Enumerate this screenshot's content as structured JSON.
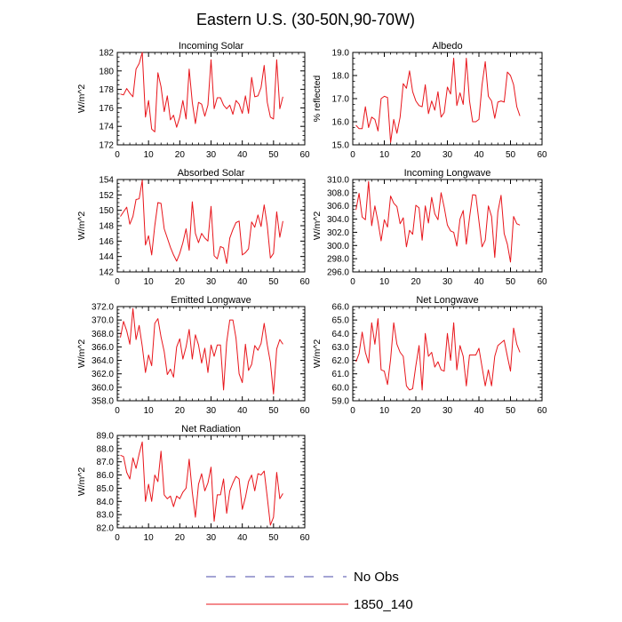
{
  "title": "Eastern U.S. (30-50N,90-70W)",
  "legend": [
    {
      "label": "No Obs",
      "color": "#4a4aa8",
      "dash": true
    },
    {
      "label": "1850_140",
      "color": "#e8151b",
      "dash": false
    }
  ],
  "chart_data": [
    {
      "type": "line",
      "title": "Incoming Solar",
      "ylabel": "W/m^2",
      "xlim": [
        0,
        60
      ],
      "ylim": [
        172,
        182
      ],
      "xticks": [
        0,
        10,
        20,
        30,
        40,
        50,
        60
      ],
      "yticks": [
        172,
        174,
        176,
        178,
        180,
        182
      ],
      "ytick_labels": [
        "172",
        "174",
        "176",
        "178",
        "180",
        "182"
      ],
      "series": [
        {
          "name": "1850_140",
          "color": "#e8151b",
          "x": [
            1,
            2,
            3,
            4,
            5,
            6,
            7,
            8,
            9,
            10,
            11,
            12,
            13,
            14,
            15,
            16,
            17,
            18,
            19,
            20,
            21,
            22,
            23,
            24,
            25,
            26,
            27,
            28,
            29,
            30,
            31,
            32,
            33,
            34,
            35,
            36,
            37,
            38,
            39,
            40,
            41,
            42,
            43,
            44,
            45,
            46,
            47,
            48,
            49,
            50,
            51,
            52,
            53
          ],
          "values": [
            177.5,
            177.4,
            178.1,
            177.6,
            177.2,
            180.2,
            180.8,
            182.0,
            175.0,
            176.8,
            173.7,
            173.4,
            179.8,
            178.3,
            175.6,
            177.3,
            174.7,
            175.2,
            173.9,
            175.0,
            176.8,
            174.8,
            180.2,
            176.6,
            174.3,
            176.6,
            176.4,
            175.1,
            176.3,
            181.2,
            175.9,
            177.1,
            177.1,
            176.3,
            175.9,
            176.3,
            175.3,
            176.8,
            176.4,
            175.4,
            177.3,
            175.4,
            179.3,
            177.2,
            177.3,
            178.2,
            180.6,
            176.6,
            175.0,
            174.8,
            181.2,
            175.9,
            177.2
          ]
        }
      ]
    },
    {
      "type": "line",
      "title": "Albedo",
      "ylabel": "% reflected",
      "xlim": [
        0,
        60
      ],
      "ylim": [
        15,
        19
      ],
      "xticks": [
        0,
        10,
        20,
        30,
        40,
        50,
        60
      ],
      "yticks": [
        15,
        16,
        17,
        18,
        19
      ],
      "ytick_labels": [
        "15.0",
        "16.0",
        "17.0",
        "18.0",
        "19.0"
      ],
      "series": [
        {
          "name": "1850_140",
          "color": "#e8151b",
          "x": [
            1,
            2,
            3,
            4,
            5,
            6,
            7,
            8,
            9,
            10,
            11,
            12,
            13,
            14,
            15,
            16,
            17,
            18,
            19,
            20,
            21,
            22,
            23,
            24,
            25,
            26,
            27,
            28,
            29,
            30,
            31,
            32,
            33,
            34,
            35,
            36,
            37,
            38,
            39,
            40,
            41,
            42,
            43,
            44,
            45,
            46,
            47,
            48,
            49,
            50,
            51,
            52,
            53
          ],
          "values": [
            15.85,
            15.7,
            15.7,
            16.65,
            15.75,
            16.2,
            16.1,
            15.6,
            17.0,
            17.1,
            17.05,
            15.1,
            16.1,
            15.5,
            16.2,
            17.65,
            17.45,
            18.2,
            17.3,
            16.9,
            16.7,
            16.65,
            17.6,
            16.35,
            16.9,
            16.5,
            17.3,
            16.2,
            16.4,
            17.5,
            17.2,
            18.75,
            16.7,
            17.25,
            16.75,
            18.75,
            16.9,
            16.0,
            16.0,
            16.1,
            17.6,
            18.6,
            17.1,
            16.9,
            16.15,
            16.85,
            16.9,
            16.85,
            18.15,
            18.0,
            17.6,
            16.65,
            16.25
          ]
        }
      ]
    },
    {
      "type": "line",
      "title": "Absorbed Solar",
      "ylabel": "W/m^2",
      "xlim": [
        0,
        60
      ],
      "ylim": [
        142,
        154
      ],
      "xticks": [
        0,
        10,
        20,
        30,
        40,
        50,
        60
      ],
      "yticks": [
        142,
        144,
        146,
        148,
        150,
        152,
        154
      ],
      "ytick_labels": [
        "142",
        "144",
        "146",
        "148",
        "150",
        "152",
        "154"
      ],
      "series": [
        {
          "name": "1850_140",
          "color": "#e8151b",
          "x": [
            1,
            2,
            3,
            4,
            5,
            6,
            7,
            8,
            9,
            10,
            11,
            12,
            13,
            14,
            15,
            16,
            17,
            18,
            19,
            20,
            21,
            22,
            23,
            24,
            25,
            26,
            27,
            28,
            29,
            30,
            31,
            32,
            33,
            34,
            35,
            36,
            37,
            38,
            39,
            40,
            41,
            42,
            43,
            44,
            45,
            46,
            47,
            48,
            49,
            50,
            51,
            52,
            53
          ],
          "values": [
            149.2,
            149.8,
            150.4,
            148.2,
            149.2,
            151.4,
            151.5,
            153.9,
            145.5,
            146.7,
            144.2,
            148.0,
            151.0,
            150.9,
            147.6,
            146.4,
            145.2,
            144.2,
            143.4,
            144.4,
            145.8,
            147.6,
            144.8,
            151.1,
            147.0,
            145.8,
            147.0,
            146.4,
            146.0,
            150.5,
            144.1,
            143.7,
            145.3,
            145.1,
            143.1,
            146.4,
            147.5,
            148.4,
            148.6,
            144.2,
            144.5,
            145.0,
            148.5,
            147.8,
            149.4,
            147.9,
            150.7,
            148.0,
            143.8,
            144.4,
            149.8,
            146.5,
            148.6
          ]
        }
      ]
    },
    {
      "type": "line",
      "title": "Incoming Longwave",
      "ylabel": "W/m^2",
      "xlim": [
        0,
        60
      ],
      "ylim": [
        296,
        310
      ],
      "xticks": [
        0,
        10,
        20,
        30,
        40,
        50,
        60
      ],
      "yticks": [
        296,
        298,
        300,
        302,
        304,
        306,
        308,
        310
      ],
      "ytick_labels": [
        "296.0",
        "298.0",
        "300.0",
        "302.0",
        "304.0",
        "306.0",
        "308.0",
        "310.0"
      ],
      "series": [
        {
          "name": "1850_140",
          "color": "#e8151b",
          "x": [
            1,
            2,
            3,
            4,
            5,
            6,
            7,
            8,
            9,
            10,
            11,
            12,
            13,
            14,
            15,
            16,
            17,
            18,
            19,
            20,
            21,
            22,
            23,
            24,
            25,
            26,
            27,
            28,
            29,
            30,
            31,
            32,
            33,
            34,
            35,
            36,
            37,
            38,
            39,
            40,
            41,
            42,
            43,
            44,
            45,
            46,
            47,
            48,
            49,
            50,
            51,
            52,
            53
          ],
          "values": [
            305.4,
            307.9,
            304.3,
            303.9,
            309.7,
            303.0,
            306.0,
            303.6,
            300.7,
            303.9,
            302.8,
            307.5,
            306.4,
            305.9,
            303.3,
            304.2,
            299.8,
            302.3,
            301.7,
            306.1,
            305.7,
            300.8,
            306.0,
            303.4,
            307.3,
            304.8,
            303.9,
            308.0,
            305.8,
            303.1,
            302.2,
            302.0,
            299.9,
            304.0,
            305.3,
            300.2,
            304.2,
            307.7,
            307.6,
            303.7,
            299.8,
            300.8,
            306.0,
            304.4,
            298.2,
            305.1,
            307.6,
            301.8,
            300.2,
            297.5,
            304.4,
            303.3,
            303.1
          ]
        }
      ]
    },
    {
      "type": "line",
      "title": "Emitted Longwave",
      "ylabel": "W/m^2",
      "xlim": [
        0,
        60
      ],
      "ylim": [
        358,
        372
      ],
      "xticks": [
        0,
        10,
        20,
        30,
        40,
        50,
        60
      ],
      "yticks": [
        358,
        360,
        362,
        364,
        366,
        368,
        370,
        372
      ],
      "ytick_labels": [
        "358.0",
        "360.0",
        "362.0",
        "364.0",
        "366.0",
        "368.0",
        "370.0",
        "372.0"
      ],
      "series": [
        {
          "name": "1850_140",
          "color": "#e8151b",
          "x": [
            1,
            2,
            3,
            4,
            5,
            6,
            7,
            8,
            9,
            10,
            11,
            12,
            13,
            14,
            15,
            16,
            17,
            18,
            19,
            20,
            21,
            22,
            23,
            24,
            25,
            26,
            27,
            28,
            29,
            30,
            31,
            32,
            33,
            34,
            35,
            36,
            37,
            38,
            39,
            40,
            41,
            42,
            43,
            44,
            45,
            46,
            47,
            48,
            49,
            50,
            51,
            52,
            53
          ],
          "values": [
            367.4,
            369.8,
            368.4,
            366.4,
            371.7,
            367.1,
            369.2,
            366.1,
            362.2,
            364.8,
            363.2,
            369.5,
            370.2,
            367.5,
            365.3,
            361.9,
            362.7,
            361.5,
            366.0,
            367.2,
            364.2,
            366.0,
            368.6,
            364.2,
            367.8,
            366.3,
            363.6,
            365.8,
            362.2,
            366.3,
            364.6,
            366.3,
            366.3,
            359.6,
            366.7,
            370.0,
            370.0,
            367.3,
            362.0,
            360.7,
            366.4,
            362.5,
            363.4,
            366.2,
            365.5,
            366.5,
            369.5,
            366.3,
            363.7,
            359.0,
            365.7,
            367.1,
            366.4
          ]
        }
      ]
    },
    {
      "type": "line",
      "title": "Net Longwave",
      "ylabel": "W/m^2",
      "xlim": [
        0,
        60
      ],
      "ylim": [
        59,
        66
      ],
      "xticks": [
        0,
        10,
        20,
        30,
        40,
        50,
        60
      ],
      "yticks": [
        59,
        60,
        61,
        62,
        63,
        64,
        65,
        66
      ],
      "ytick_labels": [
        "59.0",
        "60.0",
        "61.0",
        "62.0",
        "63.0",
        "64.0",
        "65.0",
        "66.0"
      ],
      "series": [
        {
          "name": "1850_140",
          "color": "#e8151b",
          "x": [
            1,
            2,
            3,
            4,
            5,
            6,
            7,
            8,
            9,
            10,
            11,
            12,
            13,
            14,
            15,
            16,
            17,
            18,
            19,
            20,
            21,
            22,
            23,
            24,
            25,
            26,
            27,
            28,
            29,
            30,
            31,
            32,
            33,
            34,
            35,
            36,
            37,
            38,
            39,
            40,
            41,
            42,
            43,
            44,
            45,
            46,
            47,
            48,
            49,
            50,
            51,
            52,
            53
          ],
          "values": [
            61.9,
            62.5,
            64.1,
            62.6,
            61.8,
            64.8,
            63.2,
            65.1,
            61.3,
            61.2,
            60.2,
            62.1,
            64.8,
            63.2,
            62.6,
            62.3,
            60.1,
            59.8,
            59.9,
            61.6,
            63.1,
            59.8,
            64.0,
            62.3,
            62.6,
            61.5,
            61.9,
            61.3,
            61.2,
            64.0,
            62.0,
            64.8,
            61.3,
            63.1,
            62.3,
            60.1,
            62.4,
            62.4,
            62.4,
            62.9,
            61.5,
            60.1,
            61.3,
            60.1,
            62.3,
            63.1,
            63.3,
            63.5,
            62.3,
            61.2,
            64.4,
            63.2,
            62.6
          ]
        }
      ]
    },
    {
      "type": "line",
      "title": "Net Radiation",
      "ylabel": "W/m^2",
      "xlim": [
        0,
        60
      ],
      "ylim": [
        82,
        89
      ],
      "xticks": [
        0,
        10,
        20,
        30,
        40,
        50,
        60
      ],
      "yticks": [
        82,
        83,
        84,
        85,
        86,
        87,
        88,
        89
      ],
      "ytick_labels": [
        "82.0",
        "83.0",
        "84.0",
        "85.0",
        "86.0",
        "87.0",
        "88.0",
        "89.0"
      ],
      "series": [
        {
          "name": "1850_140",
          "color": "#e8151b",
          "x": [
            1,
            2,
            3,
            4,
            5,
            6,
            7,
            8,
            9,
            10,
            11,
            12,
            13,
            14,
            15,
            16,
            17,
            18,
            19,
            20,
            21,
            22,
            23,
            24,
            25,
            26,
            27,
            28,
            29,
            30,
            31,
            32,
            33,
            34,
            35,
            36,
            37,
            38,
            39,
            40,
            41,
            42,
            43,
            44,
            45,
            46,
            47,
            48,
            49,
            50,
            51,
            52,
            53
          ],
          "values": [
            87.5,
            87.4,
            86.2,
            85.7,
            87.3,
            86.5,
            87.6,
            88.5,
            84.0,
            85.3,
            84.0,
            86.0,
            85.5,
            87.8,
            84.5,
            84.2,
            84.4,
            83.6,
            84.4,
            84.2,
            84.7,
            85.0,
            87.2,
            84.7,
            82.8,
            85.3,
            86.1,
            84.8,
            85.4,
            86.6,
            82.5,
            84.5,
            84.5,
            85.7,
            83.1,
            84.8,
            85.4,
            85.9,
            85.7,
            83.4,
            84.3,
            85.5,
            86.0,
            84.8,
            86.1,
            86.0,
            86.3,
            84.3,
            82.2,
            82.8,
            86.2,
            84.2,
            84.6
          ]
        }
      ]
    }
  ]
}
